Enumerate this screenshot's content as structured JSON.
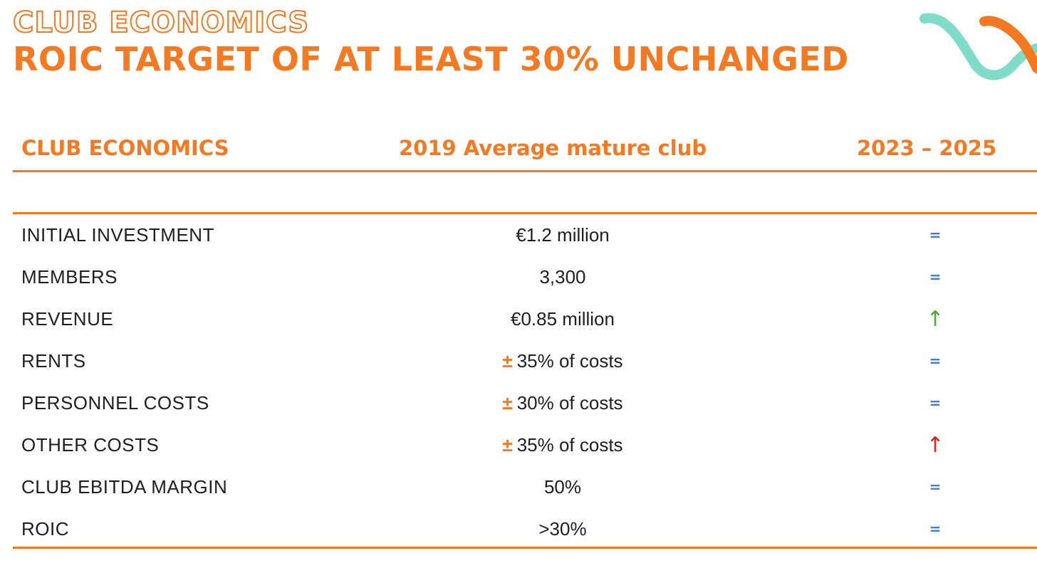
{
  "header": {
    "eyebrow": "CLUB ECONOMICS",
    "headline": "ROIC TARGET OF AT LEAST 30% UNCHANGED"
  },
  "table": {
    "columns": [
      "CLUB ECONOMICS",
      "2019 Average mature club",
      "2023 – 2025"
    ],
    "rows": [
      {
        "label": "INITIAL INVESTMENT",
        "prefix": "",
        "value": "€1.2 million",
        "trend": "=",
        "trend_kind": "equal"
      },
      {
        "label": "MEMBERS",
        "prefix": "",
        "value": "3,300",
        "trend": "=",
        "trend_kind": "equal"
      },
      {
        "label": "REVENUE",
        "prefix": "",
        "value": "€0.85 million",
        "trend": "↑",
        "trend_kind": "up-green"
      },
      {
        "label": "RENTS",
        "prefix": "±",
        "value": "35% of costs",
        "trend": "=",
        "trend_kind": "equal"
      },
      {
        "label": "PERSONNEL COSTS",
        "prefix": "±",
        "value": "30% of costs",
        "trend": "=",
        "trend_kind": "equal"
      },
      {
        "label": "OTHER COSTS",
        "prefix": "±",
        "value": "35% of costs",
        "trend": "↑",
        "trend_kind": "up-red"
      },
      {
        "label": "CLUB EBITDA MARGIN",
        "prefix": "",
        "value": "50%",
        "trend": "=",
        "trend_kind": "equal"
      },
      {
        "label": "ROIC",
        "prefix": "",
        "value": ">30%",
        "trend": "=",
        "trend_kind": "equal"
      }
    ]
  },
  "colors": {
    "accent": "#f47920",
    "equal": "#3f7fcf",
    "up_green": "#4ea83c",
    "up_red": "#e0201a",
    "deco_teal": "#7fdcc8"
  },
  "icons": {
    "decoration": "wave-decoration-icon",
    "equal": "equal-sign-icon",
    "up": "arrow-up-icon"
  }
}
